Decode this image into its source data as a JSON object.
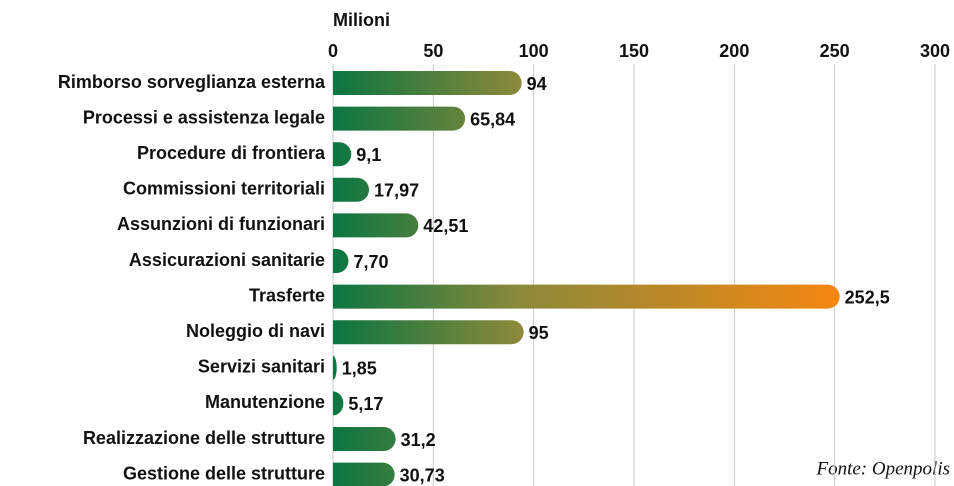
{
  "chart_data": {
    "type": "bar",
    "orientation": "horizontal",
    "axis_label": "Milioni",
    "source": "Fonte: Openpolis",
    "categories": [
      "Rimborso sorveglianza esterna",
      "Processi e assistenza legale",
      "Procedure di frontiera",
      "Commissioni territoriali",
      "Assunzioni di funzionari",
      "Assicurazioni sanitarie",
      "Trasferte",
      "Noleggio di navi",
      "Servizi sanitari",
      "Manutenzione",
      "Realizzazione delle strutture",
      "Gestione delle strutture"
    ],
    "values": [
      94,
      65.84,
      9.1,
      17.97,
      42.51,
      7.7,
      252.5,
      95,
      1.85,
      5.17,
      31.2,
      30.73
    ],
    "value_labels": [
      "94",
      "65,84",
      "9,1",
      "17,97",
      "42,51",
      "7,70",
      "252,5",
      "95",
      "1,85",
      "5,17",
      "31,2",
      "30,73"
    ],
    "colors": [
      "#0b7541",
      "#8c893a",
      "#f4870f"
    ],
    "xlim": [
      0,
      300
    ],
    "xticks": [
      0,
      50,
      100,
      150,
      200,
      250,
      300
    ],
    "grid": true
  }
}
